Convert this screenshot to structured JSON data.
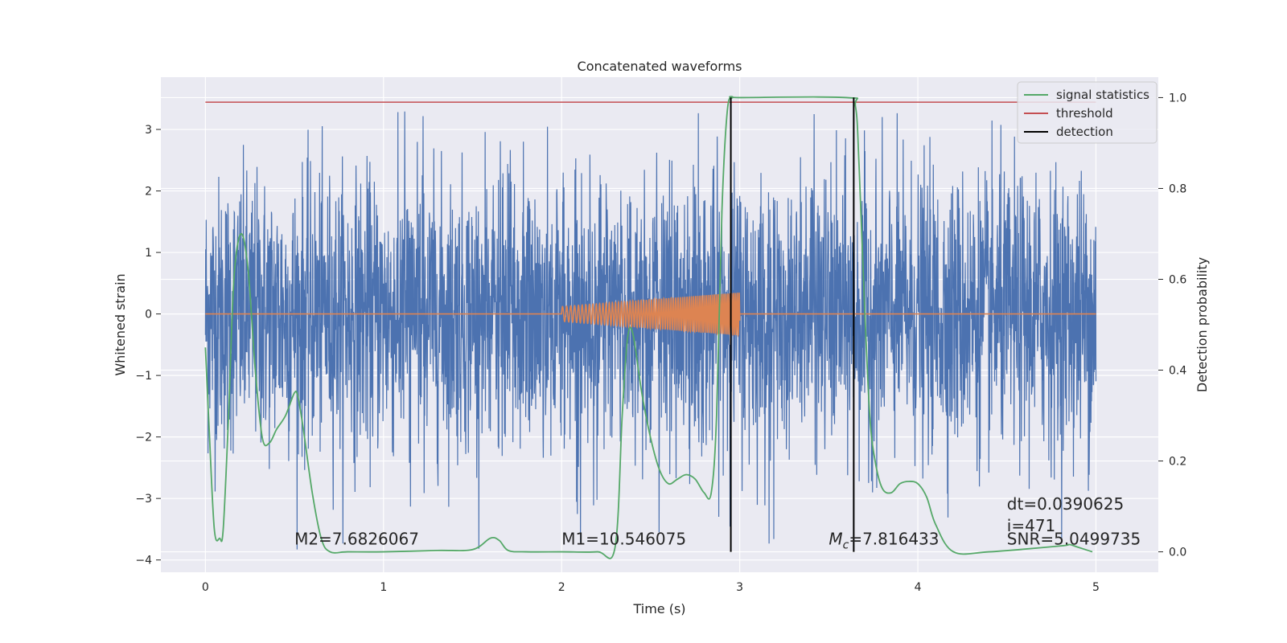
{
  "chart_data": {
    "type": "line",
    "title": "Concatenated waveforms",
    "xlabel": "Time (s)",
    "ylabel": "Whitened strain",
    "y2label": "Detection probability",
    "xlim": [
      -0.25,
      5.35
    ],
    "ylim": [
      -4.2,
      3.85
    ],
    "y2lim": [
      -0.045,
      1.045
    ],
    "xticks": [
      "0",
      "1",
      "2",
      "3",
      "4",
      "5"
    ],
    "yticks": [
      "3",
      "2",
      "1",
      "0",
      "−1",
      "−2",
      "−3",
      "−4"
    ],
    "y2ticks": [
      "1.0",
      "0.8",
      "0.6",
      "0.4",
      "0.2",
      "0.0"
    ],
    "grid": true,
    "legend_position": "top-right",
    "series": [
      {
        "name": "",
        "kind": "whitened-strain-noise",
        "color": "#4c72b0",
        "x_range": [
          0,
          5
        ],
        "approx_std": 1.1,
        "approx_peak": 3.3
      },
      {
        "name": "",
        "kind": "injected-chirp",
        "color": "#dd8452",
        "x_range": [
          2.0,
          3.0
        ],
        "amplitude_start": 0.12,
        "amplitude_end": 0.35
      },
      {
        "name": "signal statistics",
        "color": "#55a868",
        "x": [
          0,
          0.02,
          0.05,
          0.08,
          0.1,
          0.13,
          0.16,
          0.2,
          0.24,
          0.28,
          0.32,
          0.36,
          0.4,
          0.45,
          0.5,
          0.52,
          0.55,
          0.6,
          0.65,
          0.7,
          0.8,
          1.0,
          1.3,
          1.5,
          1.6,
          1.65,
          1.7,
          1.8,
          2.0,
          2.2,
          2.3,
          2.34,
          2.37,
          2.4,
          2.45,
          2.5,
          2.55,
          2.6,
          2.65,
          2.7,
          2.75,
          2.8,
          2.84,
          2.87,
          2.9,
          2.93,
          2.96,
          3.0,
          3.6,
          3.65,
          3.67,
          3.7,
          3.73,
          3.76,
          3.8,
          3.85,
          3.9,
          3.95,
          4.0,
          4.05,
          4.1,
          4.2,
          4.4,
          4.8,
          4.85,
          4.9,
          4.98
        ],
        "y": [
          0.45,
          0.28,
          0.05,
          0.03,
          0.05,
          0.3,
          0.6,
          0.7,
          0.62,
          0.4,
          0.25,
          0.24,
          0.27,
          0.3,
          0.35,
          0.34,
          0.27,
          0.13,
          0.03,
          0.0,
          0.0,
          0.0,
          0.003,
          0.005,
          0.03,
          0.025,
          0.003,
          0.0,
          0.0,
          0.0,
          0.01,
          0.3,
          0.47,
          0.48,
          0.35,
          0.25,
          0.18,
          0.15,
          0.16,
          0.17,
          0.16,
          0.13,
          0.13,
          0.3,
          0.75,
          0.97,
          1.0,
          1.0,
          1.0,
          0.98,
          0.85,
          0.55,
          0.3,
          0.2,
          0.14,
          0.13,
          0.15,
          0.155,
          0.15,
          0.12,
          0.06,
          0.0,
          0.0,
          0.013,
          0.016,
          0.01,
          0.0
        ]
      },
      {
        "name": "threshold",
        "color": "#c44e52",
        "y2_value": 0.99,
        "x_range": [
          0,
          5
        ]
      },
      {
        "name": "detection",
        "color": "#000000",
        "x_values": [
          2.95,
          3.64
        ],
        "y2_range": [
          0.0,
          1.0
        ]
      }
    ],
    "annotations": [
      {
        "prefix": "M2=7.6826067",
        "x": 0.5
      },
      {
        "prefix": "M1=10.546075",
        "x": 2.0
      },
      {
        "prefix": "M",
        "sub": "c",
        "suffix": "=7.816433",
        "x": 3.5
      },
      {
        "prefix": "SNR=5.0499735",
        "x": 4.5
      },
      {
        "prefix": "dt=0.0390625",
        "x": 4.5
      },
      {
        "prefix": " i=471",
        "x": 4.5
      }
    ]
  }
}
